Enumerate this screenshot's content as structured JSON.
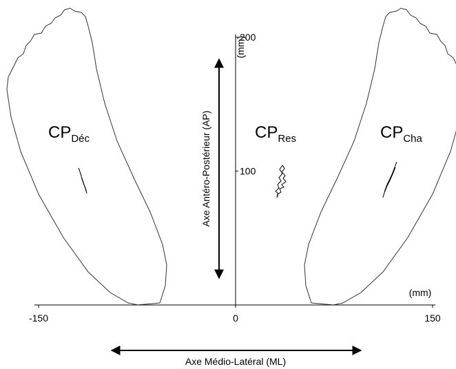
{
  "x_axis": {
    "ticks": [
      -150,
      0,
      150
    ],
    "unit": "(mm)",
    "label": "Axe Médio-Latéral (ML)"
  },
  "y_axis": {
    "ticks": [
      100,
      200
    ],
    "unit": "(mm)",
    "label": "Axe Antéro-Postérieur (AP)"
  },
  "labels": [
    {
      "main": "CP",
      "sub": "Déc"
    },
    {
      "main": "CP",
      "sub": "Res"
    },
    {
      "main": "CP",
      "sub": "Cha"
    }
  ]
}
